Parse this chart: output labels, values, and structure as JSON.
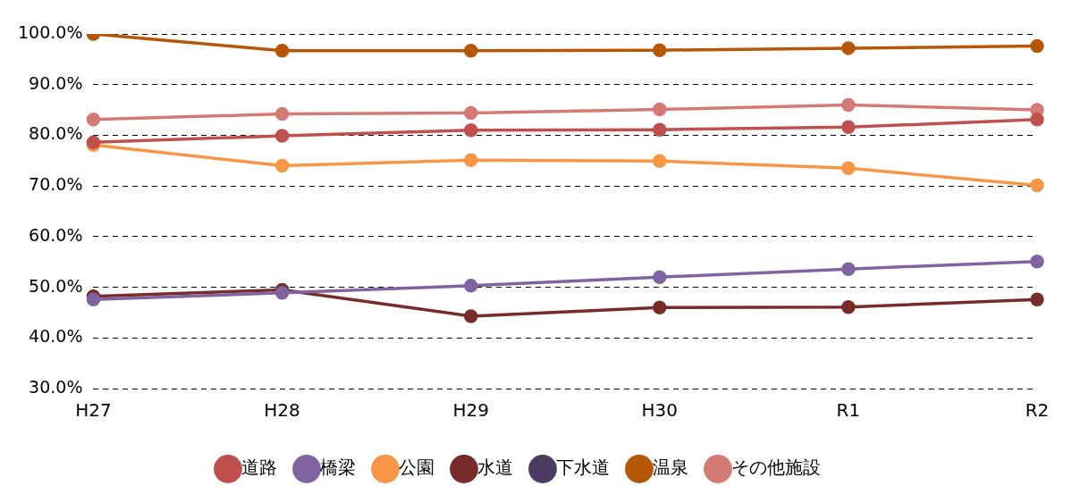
{
  "chart_data": {
    "type": "line",
    "categories": [
      "H27",
      "H28",
      "H29",
      "H30",
      "R1",
      "R2"
    ],
    "series": [
      {
        "name": "道路",
        "color": "#c0504d",
        "values": [
          78.6,
          79.9,
          81.0,
          81.1,
          81.6,
          83.1
        ]
      },
      {
        "name": "橋梁",
        "color": "#8064a2",
        "values": [
          47.6,
          48.9,
          50.3,
          52.0,
          53.6,
          55.1
        ]
      },
      {
        "name": "公園",
        "color": "#f79646",
        "values": [
          78.1,
          74.0,
          75.1,
          74.9,
          73.5,
          70.1
        ]
      },
      {
        "name": "水道",
        "color": "#772c2a",
        "values": [
          48.2,
          49.5,
          44.3,
          46.0,
          46.1,
          47.6
        ]
      },
      {
        "name": "下水道",
        "color": "#4b3a62",
        "values": [
          null,
          null,
          null,
          null,
          null,
          null
        ]
      },
      {
        "name": "温泉",
        "color": "#b65708",
        "values": [
          100.0,
          96.7,
          96.7,
          96.8,
          97.2,
          97.6
        ]
      },
      {
        "name": "その他施設",
        "color": "#d47a74",
        "values": [
          83.1,
          84.2,
          84.4,
          85.1,
          86.0,
          85.0
        ]
      }
    ],
    "ylim": [
      30,
      100
    ],
    "yticks": [
      {
        "value": 30,
        "label": "30.0%"
      },
      {
        "value": 40,
        "label": "40.0%"
      },
      {
        "value": 50,
        "label": "50.0%"
      },
      {
        "value": 60,
        "label": "60.0%"
      },
      {
        "value": 70,
        "label": "70.0%"
      },
      {
        "value": 80,
        "label": "80.0%"
      },
      {
        "value": 90,
        "label": "90.0%"
      },
      {
        "value": 100,
        "label": "100.0%"
      }
    ],
    "grid": "y",
    "legend": "bottom",
    "marker": "circle",
    "line_style": "solid"
  }
}
